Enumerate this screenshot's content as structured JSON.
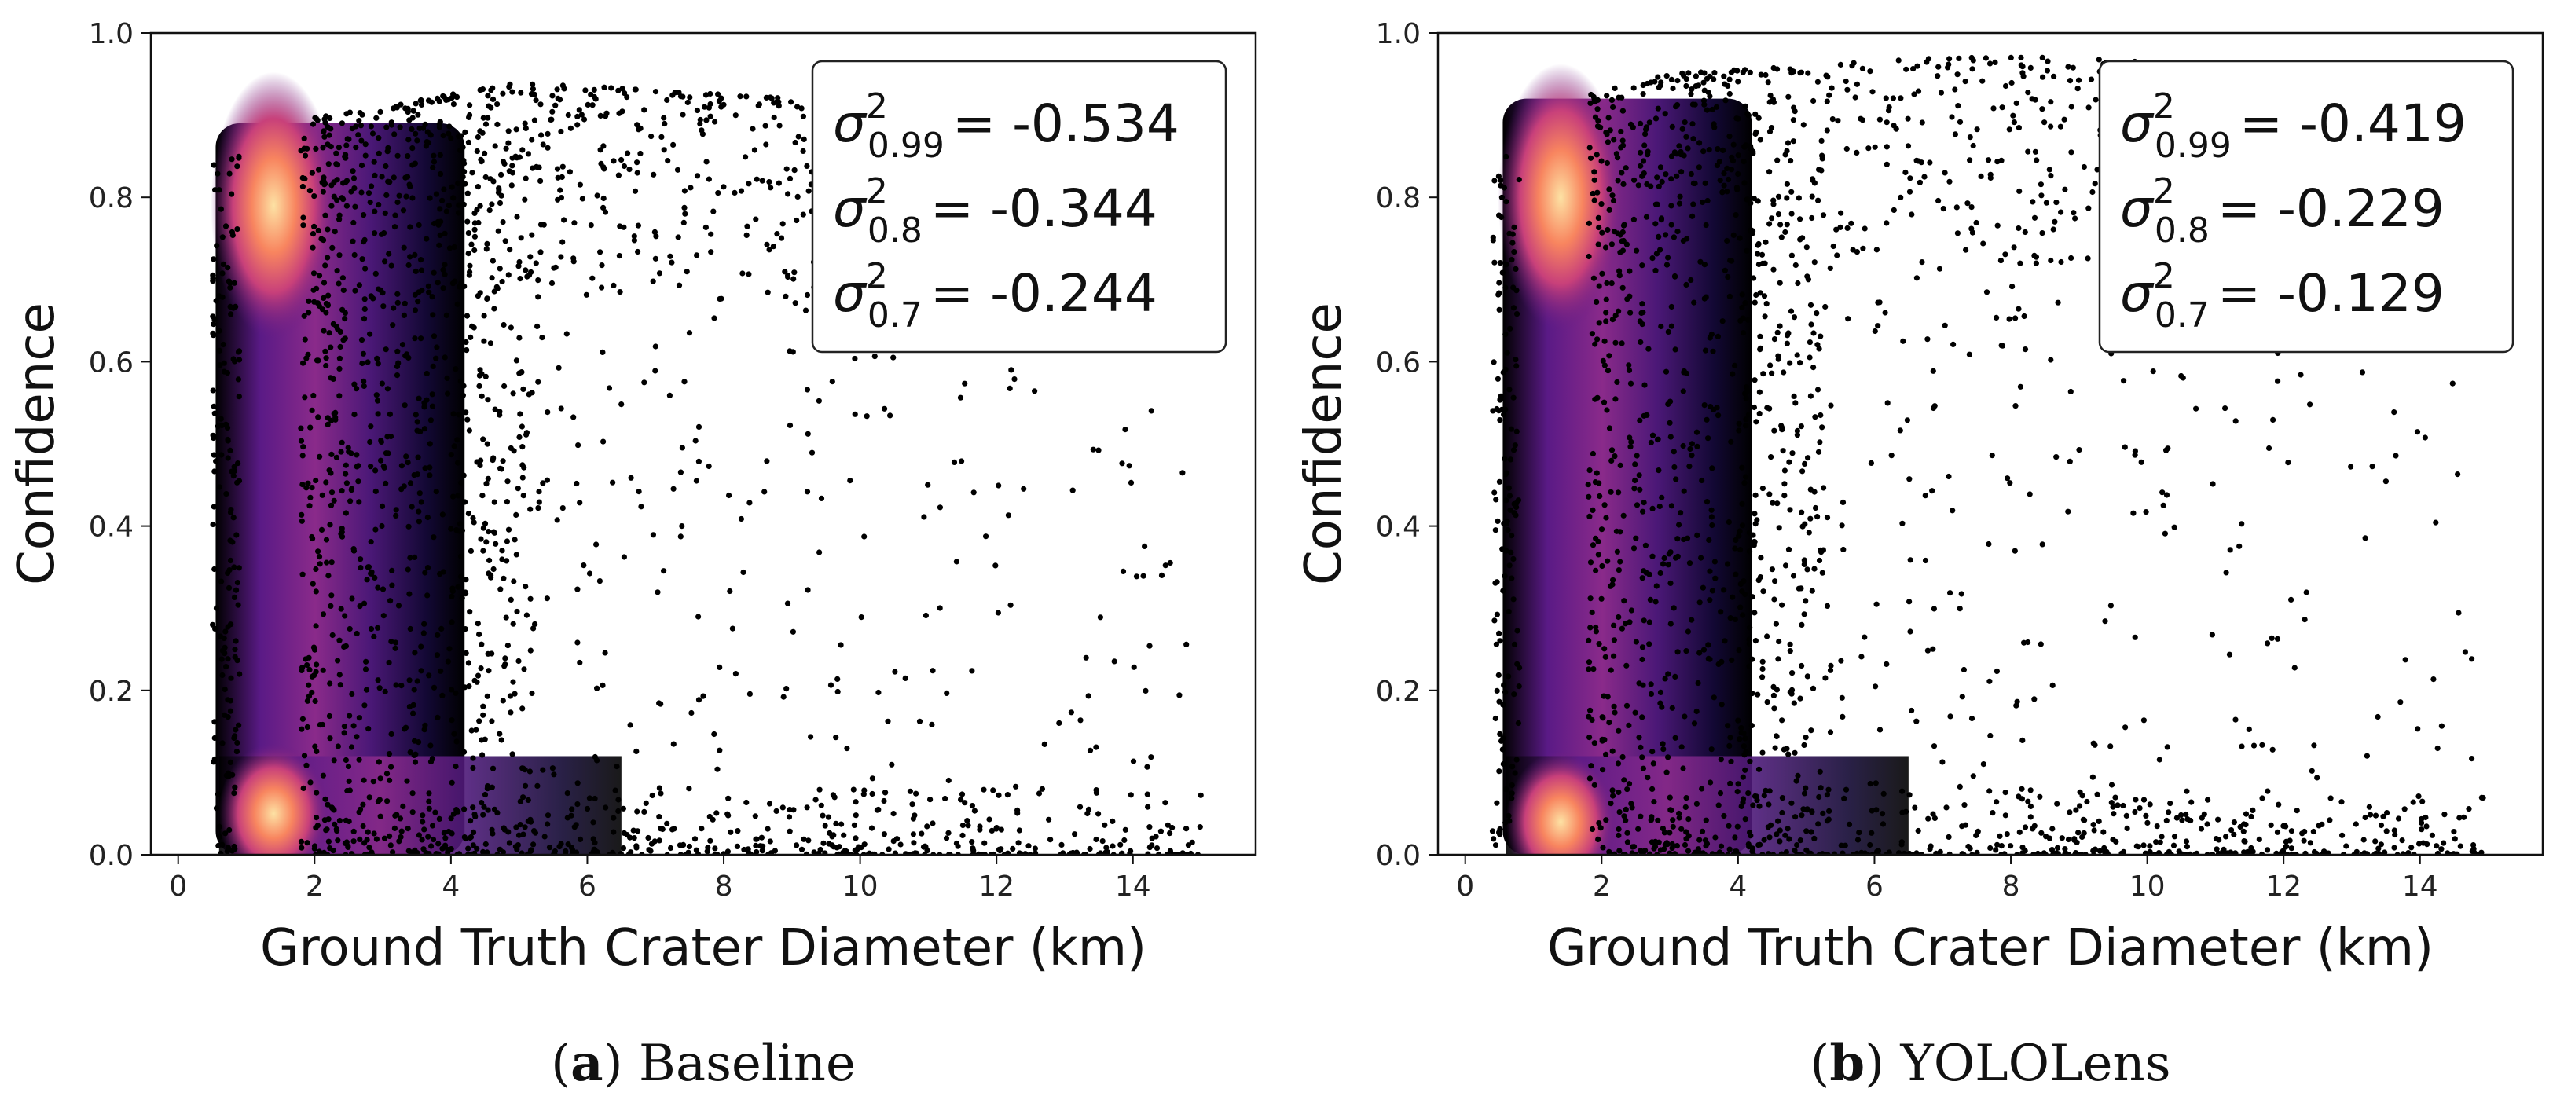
{
  "chart_data": [
    {
      "type": "scatter",
      "caption": {
        "letter": "a",
        "name": "Baseline"
      },
      "xlabel": "Ground Truth Crater Diameter (km)",
      "ylabel": "Confidence",
      "xlim": [
        -0.4,
        15.8
      ],
      "ylim": [
        0.0,
        1.0
      ],
      "xticks": [
        0,
        2,
        4,
        6,
        8,
        10,
        12,
        14
      ],
      "yticks": [
        0.0,
        0.2,
        0.4,
        0.6,
        0.8,
        1.0
      ],
      "colormap": "magma density",
      "density_hotspots": [
        {
          "x": 1.4,
          "y": 0.79
        },
        {
          "x": 1.4,
          "y": 0.05
        }
      ],
      "upper_envelope": [
        [
          0.7,
          0.86
        ],
        [
          1.5,
          0.89
        ],
        [
          3.0,
          0.91
        ],
        [
          5.0,
          0.94
        ],
        [
          7.0,
          0.93
        ],
        [
          9.0,
          0.92
        ],
        [
          10.0,
          0.84
        ]
      ],
      "x_range": [
        0.5,
        15.0
      ],
      "annotations": [
        {
          "symbol": "σ",
          "sup": "2",
          "sub": "0.99",
          "value": "= -0.534"
        },
        {
          "symbol": "σ",
          "sup": "2",
          "sub": "0.8",
          "value": "= -0.344"
        },
        {
          "symbol": "σ",
          "sup": "2",
          "sub": "0.7",
          "value": "= -0.244"
        }
      ],
      "legend_placement": "top-right"
    },
    {
      "type": "scatter",
      "caption": {
        "letter": "b",
        "name": "YOLOLens"
      },
      "xlabel": "Ground Truth Crater Diameter (km)",
      "ylabel": "Confidence",
      "xlim": [
        -0.4,
        15.8
      ],
      "ylim": [
        0.0,
        1.0
      ],
      "xticks": [
        0,
        2,
        4,
        6,
        8,
        10,
        12,
        14
      ],
      "yticks": [
        0.0,
        0.2,
        0.4,
        0.6,
        0.8,
        1.0
      ],
      "colormap": "magma density",
      "density_hotspots": [
        {
          "x": 1.4,
          "y": 0.8
        },
        {
          "x": 1.4,
          "y": 0.04
        }
      ],
      "upper_envelope": [
        [
          0.8,
          0.89
        ],
        [
          1.5,
          0.92
        ],
        [
          3.0,
          0.95
        ],
        [
          5.0,
          0.96
        ],
        [
          7.0,
          0.97
        ],
        [
          9.0,
          0.97
        ],
        [
          11.0,
          0.96
        ],
        [
          13.0,
          0.95
        ]
      ],
      "x_range": [
        0.4,
        15.0
      ],
      "annotations": [
        {
          "symbol": "σ",
          "sup": "2",
          "sub": "0.99",
          "value": "= -0.419"
        },
        {
          "symbol": "σ",
          "sup": "2",
          "sub": "0.8",
          "value": "= -0.229"
        },
        {
          "symbol": "σ",
          "sup": "2",
          "sub": "0.7",
          "value": "= -0.129"
        }
      ],
      "legend_placement": "top-right"
    }
  ]
}
